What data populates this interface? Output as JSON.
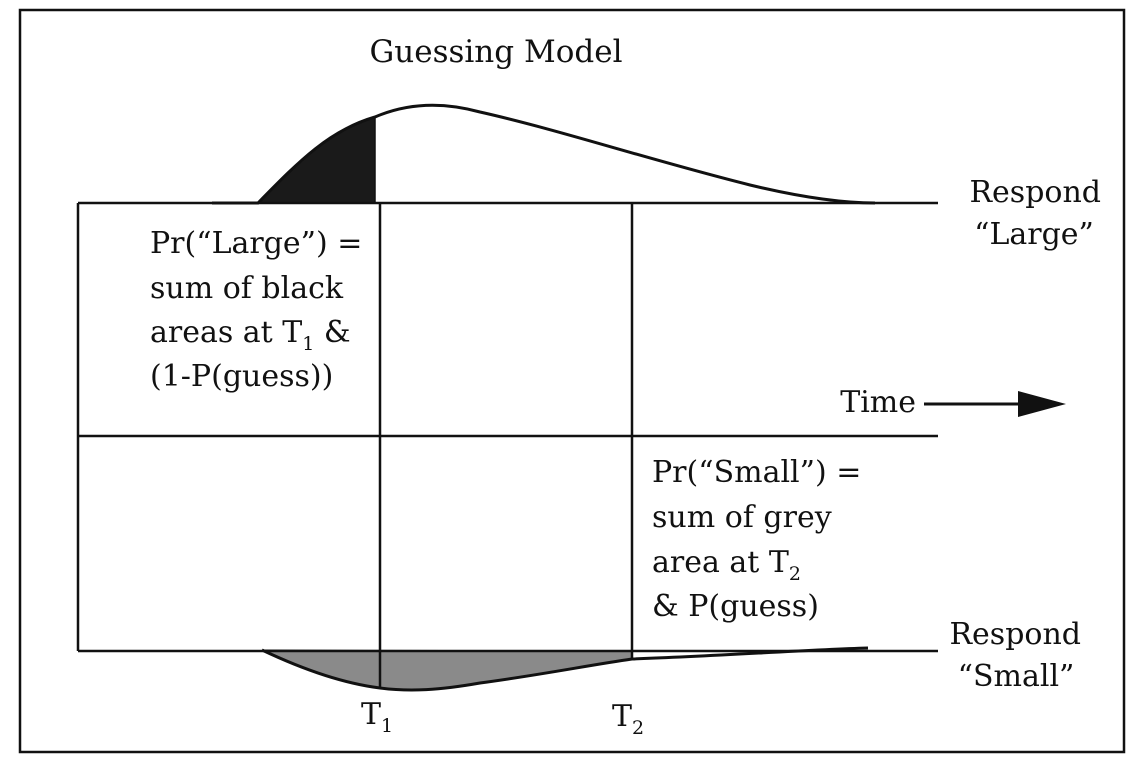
{
  "title": "Guessing Model",
  "upper_label": {
    "line1": "Respond",
    "line2": "“Large”"
  },
  "lower_label": {
    "line1": "Respond",
    "line2": "“Small”"
  },
  "large_note": {
    "line1": "Pr(“Large”) =",
    "line2": "sum of black",
    "line3_prefix": "areas at T",
    "line3_sub": "1",
    "line3_suffix": " &",
    "line4": "(1-P(guess))"
  },
  "small_note": {
    "line1": "Pr(“Small”) =",
    "line2": "sum of grey",
    "line3_prefix": "area at T",
    "line3_sub": "2",
    "line4": "& P(guess)"
  },
  "time_axis": {
    "label": "Time"
  },
  "thresholds": [
    {
      "letter": "T",
      "sub": "1"
    },
    {
      "letter": "T",
      "sub": "2"
    }
  ],
  "colors": {
    "large_fill": "#1a1a1a",
    "small_fill": "#8a8a8a",
    "line": "#111111"
  }
}
